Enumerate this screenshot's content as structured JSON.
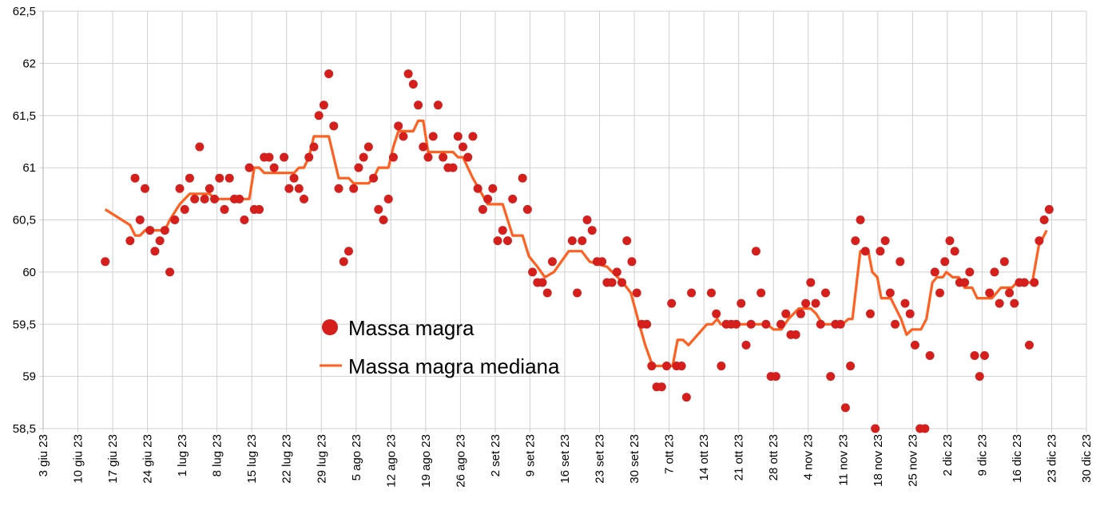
{
  "chart_data": {
    "type": "scatter+line",
    "title": "",
    "xlabel": "",
    "ylabel": "",
    "ylim": [
      58.5,
      62.5
    ],
    "y_ticks": [
      "58,5",
      "59",
      "59,5",
      "60",
      "60,5",
      "61",
      "61,5",
      "62",
      "62,5"
    ],
    "y_tick_values": [
      58.5,
      59,
      59.5,
      60,
      60.5,
      61,
      61.5,
      62,
      62.5
    ],
    "x_unit": "days from 3 giu 23",
    "xlim": [
      0,
      210
    ],
    "x_ticks": [
      "3 giu 23",
      "10 giu 23",
      "17 giu 23",
      "24 giu 23",
      "1 lug 23",
      "8 lug 23",
      "15 lug 23",
      "22 lug 23",
      "29 lug 23",
      "5 ago 23",
      "12 ago 23",
      "19 ago 23",
      "26 ago 23",
      "2 set 23",
      "9 set 23",
      "16 set 23",
      "23 set 23",
      "30 set 23",
      "7 ott 23",
      "14 ott 23",
      "21 ott 23",
      "28 ott 23",
      "4 nov 23",
      "11 nov 23",
      "18 nov 23",
      "25 nov 23",
      "2 dic 23",
      "9 dic 23",
      "16 dic 23",
      "23 dic 23",
      "30 dic 23"
    ],
    "grid": true,
    "legend_position": "center-left",
    "colors": {
      "points": "#d41f1c",
      "median": "#ff5f1f",
      "grid": "#cfcfcf"
    },
    "series": [
      {
        "name": "Massa magra",
        "kind": "scatter",
        "points": [
          [
            12,
            60.1
          ],
          [
            17,
            60.3
          ],
          [
            18,
            60.9
          ],
          [
            19,
            60.5
          ],
          [
            20,
            60.8
          ],
          [
            21,
            60.4
          ],
          [
            22,
            60.2
          ],
          [
            23,
            60.3
          ],
          [
            24,
            60.4
          ],
          [
            25,
            60.0
          ],
          [
            26,
            60.5
          ],
          [
            27,
            60.8
          ],
          [
            28,
            60.6
          ],
          [
            29,
            60.9
          ],
          [
            30,
            60.7
          ],
          [
            31,
            61.2
          ],
          [
            32,
            60.7
          ],
          [
            33,
            60.8
          ],
          [
            34,
            60.7
          ],
          [
            35,
            60.9
          ],
          [
            36,
            60.6
          ],
          [
            37,
            60.9
          ],
          [
            38,
            60.7
          ],
          [
            39,
            60.7
          ],
          [
            40,
            60.5
          ],
          [
            41,
            61.0
          ],
          [
            42,
            60.6
          ],
          [
            43,
            60.6
          ],
          [
            44,
            61.1
          ],
          [
            45,
            61.1
          ],
          [
            46,
            61.0
          ],
          [
            48,
            61.1
          ],
          [
            49,
            60.8
          ],
          [
            50,
            60.9
          ],
          [
            51,
            60.8
          ],
          [
            52,
            60.7
          ],
          [
            53,
            61.1
          ],
          [
            54,
            61.2
          ],
          [
            55,
            61.5
          ],
          [
            56,
            61.6
          ],
          [
            57,
            61.9
          ],
          [
            58,
            61.4
          ],
          [
            59,
            60.8
          ],
          [
            60,
            60.1
          ],
          [
            61,
            60.2
          ],
          [
            62,
            60.8
          ],
          [
            63,
            61.0
          ],
          [
            64,
            61.1
          ],
          [
            65,
            61.2
          ],
          [
            66,
            60.9
          ],
          [
            67,
            60.6
          ],
          [
            68,
            60.5
          ],
          [
            69,
            60.7
          ],
          [
            70,
            61.1
          ],
          [
            71,
            61.4
          ],
          [
            72,
            61.3
          ],
          [
            73,
            61.9
          ],
          [
            74,
            61.8
          ],
          [
            75,
            61.6
          ],
          [
            76,
            61.2
          ],
          [
            77,
            61.1
          ],
          [
            78,
            61.3
          ],
          [
            79,
            61.6
          ],
          [
            80,
            61.1
          ],
          [
            81,
            61.0
          ],
          [
            82,
            61.0
          ],
          [
            83,
            61.3
          ],
          [
            84,
            61.2
          ],
          [
            85,
            61.1
          ],
          [
            86,
            61.3
          ],
          [
            87,
            60.8
          ],
          [
            88,
            60.6
          ],
          [
            89,
            60.7
          ],
          [
            90,
            60.8
          ],
          [
            91,
            60.3
          ],
          [
            92,
            60.4
          ],
          [
            93,
            60.3
          ],
          [
            94,
            60.7
          ],
          [
            96,
            60.9
          ],
          [
            97,
            60.6
          ],
          [
            98,
            60.0
          ],
          [
            99,
            59.9
          ],
          [
            100,
            59.9
          ],
          [
            101,
            59.8
          ],
          [
            102,
            60.1
          ],
          [
            106,
            60.3
          ],
          [
            107,
            59.8
          ],
          [
            108,
            60.3
          ],
          [
            109,
            60.5
          ],
          [
            110,
            60.4
          ],
          [
            111,
            60.1
          ],
          [
            112,
            60.1
          ],
          [
            113,
            59.9
          ],
          [
            114,
            59.9
          ],
          [
            115,
            60.0
          ],
          [
            116,
            59.9
          ],
          [
            117,
            60.3
          ],
          [
            118,
            60.1
          ],
          [
            119,
            59.8
          ],
          [
            120,
            59.5
          ],
          [
            121,
            59.5
          ],
          [
            122,
            59.1
          ],
          [
            123,
            58.9
          ],
          [
            124,
            58.9
          ],
          [
            125,
            59.1
          ],
          [
            126,
            59.7
          ],
          [
            127,
            59.1
          ],
          [
            128,
            59.1
          ],
          [
            129,
            58.8
          ],
          [
            130,
            59.8
          ],
          [
            134,
            59.8
          ],
          [
            135,
            59.6
          ],
          [
            136,
            59.1
          ],
          [
            137,
            59.5
          ],
          [
            138,
            59.5
          ],
          [
            139,
            59.5
          ],
          [
            140,
            59.7
          ],
          [
            141,
            59.3
          ],
          [
            142,
            59.5
          ],
          [
            143,
            60.2
          ],
          [
            144,
            59.8
          ],
          [
            145,
            59.5
          ],
          [
            146,
            59.0
          ],
          [
            147,
            59.0
          ],
          [
            148,
            59.5
          ],
          [
            149,
            59.6
          ],
          [
            150,
            59.4
          ],
          [
            151,
            59.4
          ],
          [
            152,
            59.6
          ],
          [
            153,
            59.7
          ],
          [
            154,
            59.9
          ],
          [
            155,
            59.7
          ],
          [
            156,
            59.5
          ],
          [
            157,
            59.8
          ],
          [
            158,
            59.0
          ],
          [
            159,
            59.5
          ],
          [
            160,
            59.5
          ],
          [
            161,
            58.7
          ],
          [
            162,
            59.1
          ],
          [
            163,
            60.3
          ],
          [
            164,
            60.5
          ],
          [
            165,
            60.2
          ],
          [
            166,
            59.6
          ],
          [
            167,
            58.5
          ],
          [
            168,
            60.2
          ],
          [
            169,
            60.3
          ],
          [
            170,
            59.8
          ],
          [
            171,
            59.5
          ],
          [
            172,
            60.1
          ],
          [
            173,
            59.7
          ],
          [
            174,
            59.6
          ],
          [
            175,
            59.3
          ],
          [
            176,
            58.5
          ],
          [
            177,
            58.5
          ],
          [
            178,
            59.2
          ],
          [
            179,
            60.0
          ],
          [
            180,
            59.8
          ],
          [
            181,
            60.1
          ],
          [
            182,
            60.3
          ],
          [
            183,
            60.2
          ],
          [
            184,
            59.9
          ],
          [
            185,
            59.9
          ],
          [
            186,
            60.0
          ],
          [
            187,
            59.2
          ],
          [
            188,
            59.0
          ],
          [
            189,
            59.2
          ],
          [
            190,
            59.8
          ],
          [
            191,
            60.0
          ],
          [
            192,
            59.7
          ],
          [
            193,
            60.1
          ],
          [
            194,
            59.8
          ],
          [
            195,
            59.7
          ],
          [
            196,
            59.9
          ],
          [
            197,
            59.9
          ],
          [
            198,
            59.3
          ],
          [
            199,
            59.9
          ],
          [
            200,
            60.3
          ],
          [
            201,
            60.5
          ],
          [
            202,
            60.6
          ]
        ]
      },
      {
        "name": "Massa magra mediana",
        "kind": "line",
        "points": [
          [
            12,
            60.6
          ],
          [
            17,
            60.45
          ],
          [
            18,
            60.35
          ],
          [
            19,
            60.35
          ],
          [
            20,
            60.4
          ],
          [
            24,
            60.4
          ],
          [
            25,
            60.5
          ],
          [
            27,
            60.65
          ],
          [
            29,
            60.75
          ],
          [
            33,
            60.75
          ],
          [
            34,
            60.7
          ],
          [
            40,
            60.7
          ],
          [
            41,
            60.7
          ],
          [
            42,
            61.0
          ],
          [
            43,
            61.0
          ],
          [
            44,
            60.95
          ],
          [
            50,
            60.95
          ],
          [
            51,
            61.0
          ],
          [
            52,
            61.0
          ],
          [
            53,
            61.1
          ],
          [
            54,
            61.3
          ],
          [
            57,
            61.3
          ],
          [
            59,
            60.9
          ],
          [
            61,
            60.9
          ],
          [
            62,
            60.85
          ],
          [
            65,
            60.85
          ],
          [
            66,
            60.9
          ],
          [
            67,
            61.0
          ],
          [
            69,
            61.0
          ],
          [
            70,
            61.2
          ],
          [
            71,
            61.35
          ],
          [
            74,
            61.35
          ],
          [
            75,
            61.45
          ],
          [
            76,
            61.45
          ],
          [
            77,
            61.15
          ],
          [
            82,
            61.15
          ],
          [
            83,
            61.1
          ],
          [
            84,
            61.1
          ],
          [
            86,
            60.9
          ],
          [
            89,
            60.65
          ],
          [
            92,
            60.65
          ],
          [
            94,
            60.35
          ],
          [
            96,
            60.35
          ],
          [
            97.3,
            60.15
          ],
          [
            99,
            60.05
          ],
          [
            100.5,
            59.95
          ],
          [
            102.3,
            60.0
          ],
          [
            105.3,
            60.2
          ],
          [
            107.9,
            60.2
          ],
          [
            109.5,
            60.1
          ],
          [
            113,
            60.05
          ],
          [
            116.2,
            59.9
          ],
          [
            117.8,
            59.8
          ],
          [
            119.5,
            59.5
          ],
          [
            120.7,
            59.3
          ],
          [
            122.2,
            59.1
          ],
          [
            126.2,
            59.1
          ],
          [
            127.2,
            59.35
          ],
          [
            128.3,
            59.35
          ],
          [
            129.4,
            59.3
          ],
          [
            133.1,
            59.5
          ],
          [
            134.2,
            59.5
          ],
          [
            135.2,
            59.55
          ],
          [
            135.9,
            59.5
          ],
          [
            145.2,
            59.5
          ],
          [
            146.5,
            59.45
          ],
          [
            148.1,
            59.45
          ],
          [
            149.5,
            59.55
          ],
          [
            151.6,
            59.65
          ],
          [
            154,
            59.65
          ],
          [
            155.1,
            59.6
          ],
          [
            156.4,
            59.5
          ],
          [
            160.4,
            59.5
          ],
          [
            161.6,
            59.55
          ],
          [
            162.4,
            59.55
          ],
          [
            164,
            60.2
          ],
          [
            165.6,
            60.2
          ],
          [
            166.4,
            60.0
          ],
          [
            167.4,
            59.95
          ],
          [
            168.2,
            59.75
          ],
          [
            170.1,
            59.75
          ],
          [
            172.2,
            59.55
          ],
          [
            173.3,
            59.4
          ],
          [
            174.4,
            59.45
          ],
          [
            176.2,
            59.45
          ],
          [
            177.3,
            59.55
          ],
          [
            178.5,
            59.9
          ],
          [
            179.4,
            59.95
          ],
          [
            180.6,
            59.95
          ],
          [
            181.3,
            60.0
          ],
          [
            182.6,
            59.95
          ],
          [
            183.8,
            59.95
          ],
          [
            185,
            59.85
          ],
          [
            186.5,
            59.85
          ],
          [
            187.5,
            59.75
          ],
          [
            190.5,
            59.75
          ],
          [
            192.3,
            59.85
          ],
          [
            194.5,
            59.85
          ],
          [
            195.5,
            59.9
          ],
          [
            198.6,
            59.9
          ],
          [
            199.9,
            60.25
          ],
          [
            201.5,
            60.4
          ]
        ]
      }
    ]
  }
}
